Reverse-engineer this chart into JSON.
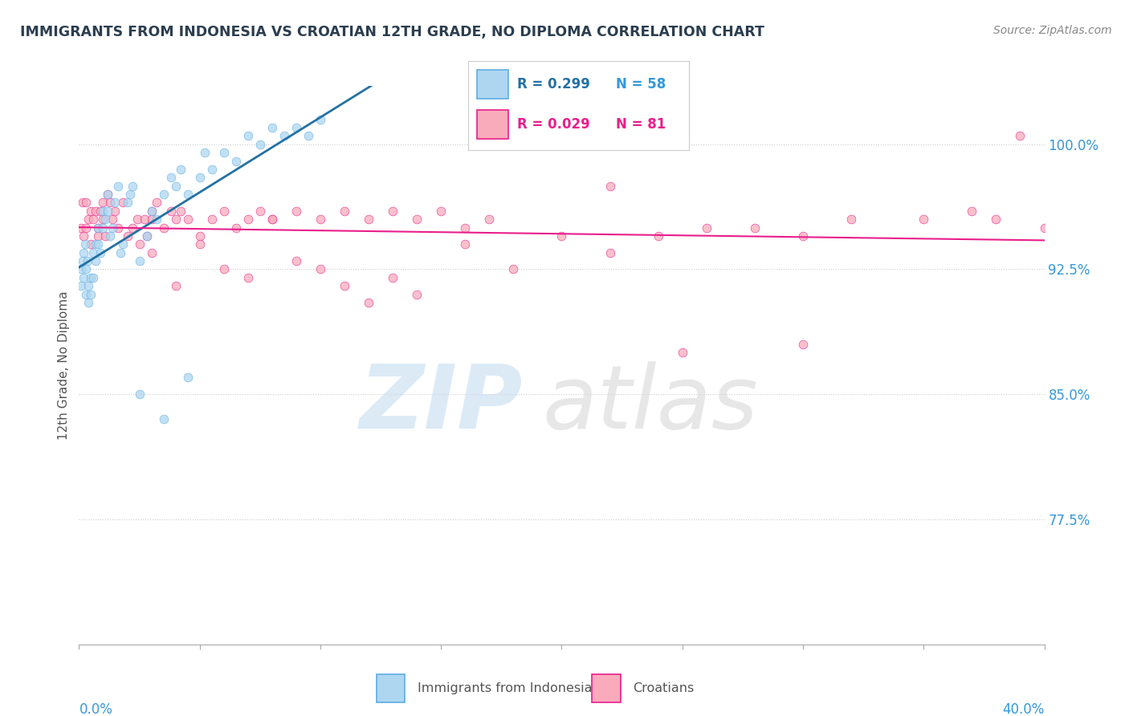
{
  "title": "IMMIGRANTS FROM INDONESIA VS CROATIAN 12TH GRADE, NO DIPLOMA CORRELATION CHART",
  "source": "Source: ZipAtlas.com",
  "xmin": 0.0,
  "xmax": 40.0,
  "ymin": 70.0,
  "ymax": 103.5,
  "ylabel_ticks": [
    77.5,
    85.0,
    92.5,
    100.0
  ],
  "ylabel_labels": [
    "77.5%",
    "85.0%",
    "92.5%",
    "100.0%"
  ],
  "legend_blue_r": "R = 0.299",
  "legend_blue_n": "N = 58",
  "legend_pink_r": "R = 0.029",
  "legend_pink_n": "N = 81",
  "blue_color": "#AED6F1",
  "pink_color": "#F9ABBB",
  "blue_edge_color": "#5DADE2",
  "pink_edge_color": "#E91E8C",
  "blue_line_color": "#2471A3",
  "pink_line_color": "#E91E8C",
  "ylabel": "12th Grade, No Diploma",
  "background": "#FFFFFF",
  "grid_color": "#CCCCCC",
  "tick_color": "#3498DB",
  "title_color": "#2C3E50",
  "blue_scatter_x": [
    0.1,
    0.1,
    0.15,
    0.2,
    0.2,
    0.25,
    0.3,
    0.3,
    0.35,
    0.4,
    0.4,
    0.5,
    0.5,
    0.6,
    0.6,
    0.7,
    0.7,
    0.8,
    0.8,
    0.9,
    1.0,
    1.0,
    1.1,
    1.2,
    1.2,
    1.3,
    1.4,
    1.5,
    1.6,
    1.7,
    1.8,
    2.0,
    2.1,
    2.2,
    2.5,
    2.8,
    3.0,
    3.2,
    3.5,
    3.8,
    4.0,
    4.2,
    4.5,
    5.0,
    5.2,
    5.5,
    6.0,
    6.5,
    7.0,
    7.5,
    8.0,
    8.5,
    9.0,
    9.5,
    10.0,
    2.5,
    3.5,
    4.5
  ],
  "blue_scatter_y": [
    92.5,
    91.5,
    93.0,
    93.5,
    92.0,
    94.0,
    91.0,
    92.5,
    93.0,
    91.5,
    90.5,
    92.0,
    91.0,
    93.5,
    92.0,
    94.0,
    93.0,
    95.0,
    94.0,
    93.5,
    96.0,
    95.0,
    95.5,
    97.0,
    96.0,
    94.5,
    95.0,
    96.5,
    97.5,
    93.5,
    94.0,
    96.5,
    97.0,
    97.5,
    93.0,
    94.5,
    96.0,
    95.5,
    97.0,
    98.0,
    97.5,
    98.5,
    97.0,
    98.0,
    99.5,
    98.5,
    99.5,
    99.0,
    100.5,
    100.0,
    101.0,
    100.5,
    101.0,
    100.5,
    101.5,
    85.0,
    83.5,
    86.0
  ],
  "pink_scatter_x": [
    0.1,
    0.15,
    0.2,
    0.3,
    0.3,
    0.4,
    0.5,
    0.5,
    0.6,
    0.7,
    0.8,
    0.8,
    0.9,
    1.0,
    1.0,
    1.1,
    1.2,
    1.3,
    1.4,
    1.5,
    1.6,
    1.8,
    2.0,
    2.2,
    2.4,
    2.5,
    2.7,
    2.8,
    3.0,
    3.0,
    3.2,
    3.5,
    3.8,
    4.0,
    4.2,
    4.5,
    5.0,
    5.5,
    6.0,
    6.5,
    7.0,
    7.5,
    8.0,
    9.0,
    10.0,
    11.0,
    12.0,
    13.0,
    14.0,
    15.0,
    16.0,
    17.0,
    18.0,
    20.0,
    22.0,
    24.0,
    26.0,
    28.0,
    30.0,
    32.0,
    35.0,
    37.0,
    38.0,
    39.0,
    40.0,
    6.0,
    8.0,
    10.0,
    12.0,
    14.0,
    25.0,
    30.0,
    3.0,
    4.0,
    5.0,
    7.0,
    9.0,
    11.0,
    13.0,
    16.0,
    22.0
  ],
  "pink_scatter_y": [
    95.0,
    96.5,
    94.5,
    95.0,
    96.5,
    95.5,
    94.0,
    96.0,
    95.5,
    96.0,
    94.5,
    95.0,
    96.0,
    95.5,
    96.5,
    94.5,
    97.0,
    96.5,
    95.5,
    96.0,
    95.0,
    96.5,
    94.5,
    95.0,
    95.5,
    94.0,
    95.5,
    94.5,
    96.0,
    95.5,
    96.5,
    95.0,
    96.0,
    95.5,
    96.0,
    95.5,
    94.5,
    95.5,
    96.0,
    95.0,
    95.5,
    96.0,
    95.5,
    96.0,
    95.5,
    96.0,
    95.5,
    96.0,
    95.5,
    96.0,
    94.0,
    95.5,
    92.5,
    94.5,
    93.5,
    94.5,
    95.0,
    95.0,
    88.0,
    95.5,
    95.5,
    96.0,
    95.5,
    100.5,
    95.0,
    92.5,
    95.5,
    92.5,
    90.5,
    91.0,
    87.5,
    94.5,
    93.5,
    91.5,
    94.0,
    92.0,
    93.0,
    91.5,
    92.0,
    95.0,
    97.5
  ]
}
